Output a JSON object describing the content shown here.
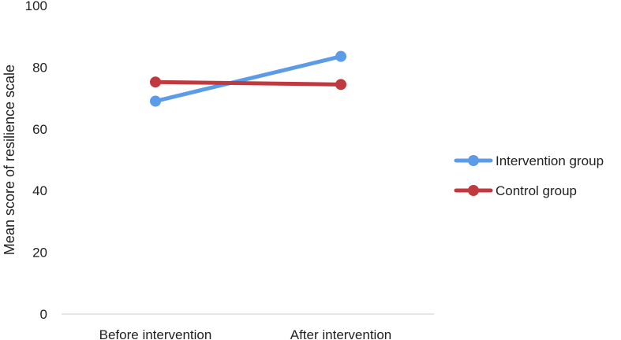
{
  "chart_data": {
    "type": "line",
    "categories": [
      "Before intervention",
      "After intervention"
    ],
    "series": [
      {
        "name": "Intervention group",
        "values": [
          69,
          83.5
        ],
        "color": "#5B9BE8"
      },
      {
        "name": "Control group",
        "values": [
          75.2,
          74.4
        ],
        "color": "#C0393F"
      }
    ],
    "title": "",
    "xlabel": "",
    "ylabel": "Mean score of resilience scale",
    "ylim": [
      0,
      100
    ],
    "yticks": [
      0,
      20,
      40,
      60,
      80,
      100
    ],
    "grid": false,
    "legend_position": "right"
  }
}
